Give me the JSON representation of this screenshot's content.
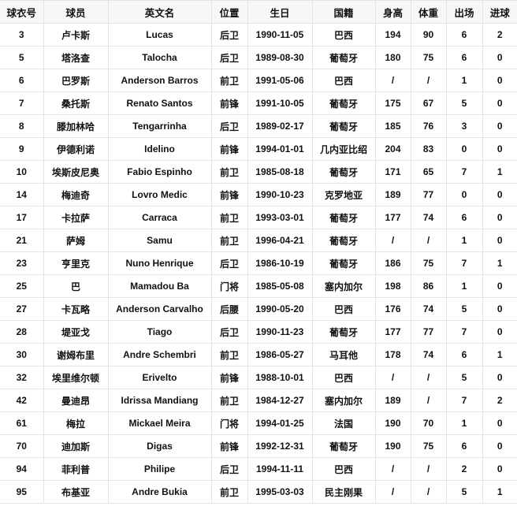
{
  "table": {
    "headers": [
      "球衣号",
      "球员",
      "英文名",
      "位置",
      "生日",
      "国籍",
      "身高",
      "体重",
      "出场",
      "进球"
    ],
    "rows": [
      [
        "3",
        "卢卡斯",
        "Lucas",
        "后卫",
        "1990-11-05",
        "巴西",
        "194",
        "90",
        "6",
        "2"
      ],
      [
        "5",
        "塔洛查",
        "Talocha",
        "后卫",
        "1989-08-30",
        "葡萄牙",
        "180",
        "75",
        "6",
        "0"
      ],
      [
        "6",
        "巴罗斯",
        "Anderson Barros",
        "前卫",
        "1991-05-06",
        "巴西",
        "/",
        "/",
        "1",
        "0"
      ],
      [
        "7",
        "桑托斯",
        "Renato Santos",
        "前锋",
        "1991-10-05",
        "葡萄牙",
        "175",
        "67",
        "5",
        "0"
      ],
      [
        "8",
        "滕加林哈",
        "Tengarrinha",
        "后卫",
        "1989-02-17",
        "葡萄牙",
        "185",
        "76",
        "3",
        "0"
      ],
      [
        "9",
        "伊德利诺",
        "Idelino",
        "前锋",
        "1994-01-01",
        "几内亚比绍",
        "204",
        "83",
        "0",
        "0"
      ],
      [
        "10",
        "埃斯皮尼奥",
        "Fabio Espinho",
        "前卫",
        "1985-08-18",
        "葡萄牙",
        "171",
        "65",
        "7",
        "1"
      ],
      [
        "14",
        "梅迪奇",
        "Lovro Medic",
        "前锋",
        "1990-10-23",
        "克罗地亚",
        "189",
        "77",
        "0",
        "0"
      ],
      [
        "17",
        "卡拉萨",
        "Carraca",
        "前卫",
        "1993-03-01",
        "葡萄牙",
        "177",
        "74",
        "6",
        "0"
      ],
      [
        "21",
        "萨姆",
        "Samu",
        "前卫",
        "1996-04-21",
        "葡萄牙",
        "/",
        "/",
        "1",
        "0"
      ],
      [
        "23",
        "亨里克",
        "Nuno Henrique",
        "后卫",
        "1986-10-19",
        "葡萄牙",
        "186",
        "75",
        "7",
        "1"
      ],
      [
        "25",
        "巴",
        "Mamadou Ba",
        "门将",
        "1985-05-08",
        "塞内加尔",
        "198",
        "86",
        "1",
        "0"
      ],
      [
        "27",
        "卡瓦略",
        "Anderson Carvalho",
        "后腰",
        "1990-05-20",
        "巴西",
        "176",
        "74",
        "5",
        "0"
      ],
      [
        "28",
        "堤亚戈",
        "Tiago",
        "后卫",
        "1990-11-23",
        "葡萄牙",
        "177",
        "77",
        "7",
        "0"
      ],
      [
        "30",
        "谢姆布里",
        "Andre Schembri",
        "前卫",
        "1986-05-27",
        "马耳他",
        "178",
        "74",
        "6",
        "1"
      ],
      [
        "32",
        "埃里维尔顿",
        "Erivelto",
        "前锋",
        "1988-10-01",
        "巴西",
        "/",
        "/",
        "5",
        "0"
      ],
      [
        "42",
        "曼迪昂",
        "Idrissa Mandiang",
        "前卫",
        "1984-12-27",
        "塞内加尔",
        "189",
        "/",
        "7",
        "2"
      ],
      [
        "61",
        "梅拉",
        "Mickael Meira",
        "门将",
        "1994-01-25",
        "法国",
        "190",
        "70",
        "1",
        "0"
      ],
      [
        "70",
        "迪加斯",
        "Digas",
        "前锋",
        "1992-12-31",
        "葡萄牙",
        "190",
        "75",
        "6",
        "0"
      ],
      [
        "94",
        "菲利普",
        "Philipe",
        "后卫",
        "1994-11-11",
        "巴西",
        "/",
        "/",
        "2",
        "0"
      ],
      [
        "95",
        "布基亚",
        "Andre Bukia",
        "前卫",
        "1995-03-03",
        "民主刚果",
        "/",
        "/",
        "5",
        "1"
      ]
    ]
  }
}
